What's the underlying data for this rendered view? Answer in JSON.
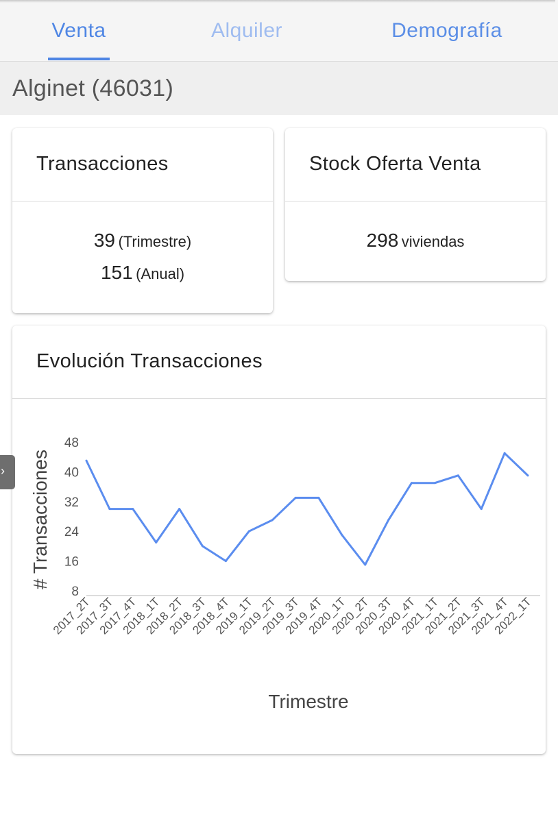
{
  "tabs": [
    {
      "label": "Venta",
      "active": true
    },
    {
      "label": "Alquiler",
      "active": false
    },
    {
      "label": "Demografía",
      "active": false
    }
  ],
  "location": {
    "title": "Alginet (46031)"
  },
  "transacciones": {
    "title": "Transacciones",
    "quarterly_value": "39",
    "quarterly_unit": "(Trimestre)",
    "annual_value": "151",
    "annual_unit": "(Anual)"
  },
  "stock": {
    "title": "Stock Oferta Venta",
    "value": "298",
    "unit": "viviendas"
  },
  "evolucion": {
    "title": "Evolución Transacciones"
  },
  "colors": {
    "accent": "#4f86e4",
    "line": "#5b8def"
  },
  "side_handle": {
    "icon": "chevron-right-icon",
    "glyph": "›"
  },
  "chart_data": {
    "type": "line",
    "title": "Evolución Transacciones",
    "xlabel": "Trimestre",
    "ylabel": "# Transacciones",
    "ylim": [
      8,
      48
    ],
    "yticks": [
      8,
      16,
      24,
      32,
      40,
      48
    ],
    "grid": false,
    "categories": [
      "2017_2T",
      "2017_3T",
      "2017_4T",
      "2018_1T",
      "2018_2T",
      "2018_3T",
      "2018_4T",
      "2019_1T",
      "2019_2T",
      "2019_3T",
      "2019_4T",
      "2020_1T",
      "2020_2T",
      "2020_3T",
      "2020_4T",
      "2021_1T",
      "2021_2T",
      "2021_3T",
      "2021_4T",
      "2022_1T"
    ],
    "series": [
      {
        "values": [
          43,
          30,
          30,
          21,
          30,
          20,
          16,
          24,
          27,
          33,
          33,
          23,
          15,
          27,
          37,
          37,
          39,
          30,
          45,
          39
        ]
      }
    ]
  }
}
